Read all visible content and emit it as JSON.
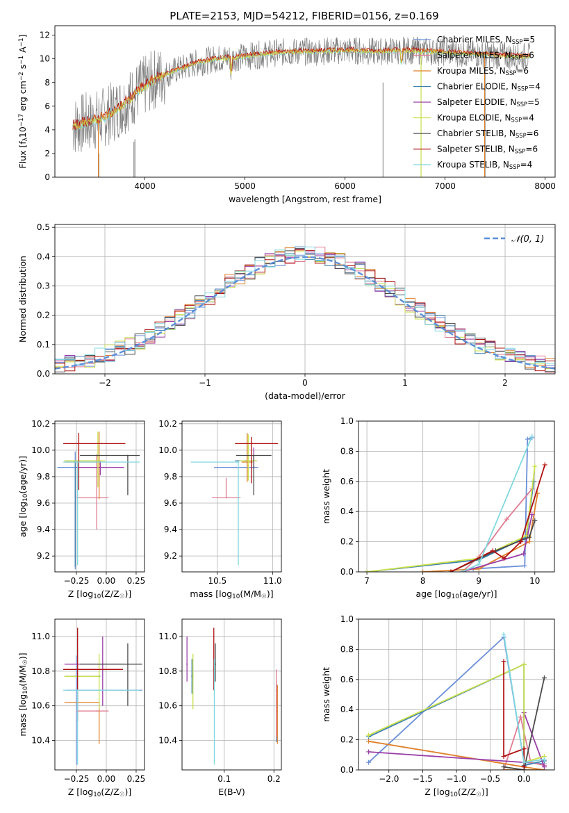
{
  "figure": {
    "title": "PLATE=2153, MJD=54212, FIBERID=0156, z=0.169",
    "colors": {
      "Chabrier MILES": "#6a8fd8",
      "Salpeter MILES": "#e07b91",
      "Kroupa MILES": "#e0802a",
      "Chabrier ELODIE": "#3c7fb1",
      "Salpeter ELODIE": "#9b3fa8",
      "Kroupa ELODIE": "#c9e04a",
      "Chabrier STELIB": "#4a4a4a",
      "Salpeter STELIB": "#b01010",
      "Kroupa STELIB": "#80d8e0",
      "data": "#7f7f7f"
    }
  },
  "chart_data": [
    {
      "id": "spectrum",
      "type": "line",
      "title": "PLATE=2153, MJD=54212, FIBERID=0156, z=0.169",
      "xlabel": "wavelength [Angstrom, rest frame]",
      "ylabel": "Flux [f_λ 10^-17 erg cm^-2 s^-1 A^-1]",
      "xlim": [
        3100,
        8100
      ],
      "ylim": [
        0,
        12.8
      ],
      "xticks": [
        4000,
        5000,
        6000,
        7000,
        8000
      ],
      "yticks": [
        0,
        2,
        4,
        6,
        8,
        10,
        12
      ],
      "legend_position": "right",
      "series": [
        {
          "name": "Chabrier MILES",
          "nssp": 5
        },
        {
          "name": "Salpeter MILES",
          "nssp": 6
        },
        {
          "name": "Kroupa MILES",
          "nssp": 6
        },
        {
          "name": "Chabrier ELODIE",
          "nssp": 4
        },
        {
          "name": "Salpeter ELODIE",
          "nssp": 5
        },
        {
          "name": "Kroupa ELODIE",
          "nssp": 4
        },
        {
          "name": "Chabrier STELIB",
          "nssp": 6
        },
        {
          "name": "Salpeter STELIB",
          "nssp": 6
        },
        {
          "name": "Kroupa STELIB",
          "nssp": 4
        }
      ],
      "continuum_x": [
        3280,
        3400,
        3550,
        3700,
        3850,
        3950,
        4100,
        4300,
        4500,
        4700,
        4900,
        5100,
        5300,
        5500,
        5700,
        5900,
        6100,
        6300,
        6500,
        6700,
        6900,
        7100,
        7300,
        7500,
        7700,
        7850
      ],
      "continuum_y": [
        4.3,
        4.6,
        4.9,
        5.6,
        6.6,
        7.4,
        8.3,
        9.0,
        9.6,
        10.0,
        10.1,
        10.3,
        10.5,
        10.6,
        10.6,
        10.7,
        10.7,
        10.6,
        10.7,
        10.7,
        10.6,
        10.5,
        10.4,
        10.3,
        10.2,
        10.2
      ]
    },
    {
      "id": "residuals",
      "type": "bar",
      "xlabel": "(data-model)/error",
      "ylabel": "Normed distribution",
      "xlim": [
        -2.5,
        2.5
      ],
      "ylim": [
        0,
        0.51
      ],
      "xticks": [
        -2,
        -1,
        0,
        1,
        2
      ],
      "yticks": [
        0.0,
        0.1,
        0.2,
        0.3,
        0.4,
        0.5
      ],
      "legend": "N(0,1)",
      "legend_position": "top-right",
      "bin_width": 0.1
    },
    {
      "id": "age_vs_Z",
      "type": "scatter",
      "xlabel": "Z [log10(Z/Z☉)]",
      "ylabel": "age [log10(age/yr)]",
      "xlim": [
        -0.43,
        0.32
      ],
      "ylim": [
        9.08,
        10.22
      ],
      "xticks": [
        -0.25,
        0.0,
        0.25
      ],
      "yticks": [
        9.2,
        9.4,
        9.6,
        9.8,
        10.0,
        10.2
      ],
      "points": [
        {
          "series": "Chabrier MILES",
          "x": -0.26,
          "y": 9.87,
          "xerr": [
            0.15,
            0.25
          ],
          "yerr": [
            0.77,
            0.12
          ]
        },
        {
          "series": "Salpeter MILES",
          "x": -0.08,
          "y": 9.64,
          "xerr": [
            0.17,
            0.1
          ],
          "yerr": [
            0.24,
            0.33
          ]
        },
        {
          "series": "Kroupa MILES",
          "x": -0.06,
          "y": 9.91,
          "xerr": [
            0.29,
            0.0
          ],
          "yerr": [
            0.28,
            0.23
          ]
        },
        {
          "series": "Chabrier ELODIE",
          "x": -0.26,
          "y": 9.92,
          "xerr": [
            0.09,
            0.21
          ],
          "yerr": [
            0.8,
            0.0
          ]
        },
        {
          "series": "Salpeter ELODIE",
          "x": -0.05,
          "y": 9.87,
          "xerr": [
            0.2,
            0.2
          ],
          "yerr": [
            0.06,
            0.05
          ]
        },
        {
          "series": "Kroupa ELODIE",
          "x": -0.07,
          "y": 9.92,
          "xerr": [
            0.28,
            0.06
          ],
          "yerr": [
            0.2,
            0.22
          ]
        },
        {
          "series": "Chabrier STELIB",
          "x": 0.18,
          "y": 9.96,
          "xerr": [
            0.4,
            0.1
          ],
          "yerr": [
            0.3,
            0.0
          ]
        },
        {
          "series": "Salpeter STELIB",
          "x": -0.23,
          "y": 10.05,
          "xerr": [
            0.13,
            0.39
          ],
          "yerr": [
            0.35,
            0.08
          ]
        },
        {
          "series": "Kroupa STELIB",
          "x": -0.24,
          "y": 9.91,
          "xerr": [
            0.12,
            0.52
          ],
          "yerr": [
            0.78,
            0.0
          ]
        }
      ]
    },
    {
      "id": "age_vs_mass",
      "type": "scatter",
      "xlabel": "mass [log10(M/M☉)]",
      "ylabel": "",
      "xlim": [
        10.18,
        11.08
      ],
      "ylim": [
        9.08,
        10.22
      ],
      "xticks": [
        10.5,
        11.0
      ],
      "yticks": [
        9.2,
        9.4,
        9.6,
        9.8,
        10.0,
        10.2
      ],
      "points": [
        {
          "series": "Chabrier MILES",
          "x": 10.67,
          "y": 9.87,
          "xerr": [
            0.2,
            0.2
          ],
          "yerr": [
            0.0,
            0.0
          ]
        },
        {
          "series": "Salpeter MILES",
          "x": 10.58,
          "y": 9.64,
          "xerr": [
            0.13,
            0.13
          ],
          "yerr": [
            0.0,
            0.15
          ]
        },
        {
          "series": "Kroupa MILES",
          "x": 10.77,
          "y": 9.91,
          "xerr": [
            0.05,
            0.05
          ],
          "yerr": [
            0.15,
            0.22
          ]
        },
        {
          "series": "Chabrier ELODIE",
          "x": 10.76,
          "y": 9.92,
          "xerr": [
            0.1,
            0.1
          ],
          "yerr": [
            0.0,
            0.0
          ]
        },
        {
          "series": "Salpeter ELODIE",
          "x": 10.83,
          "y": 9.87,
          "xerr": [
            0.0,
            0.0
          ],
          "yerr": [
            0.0,
            0.15
          ]
        },
        {
          "series": "Kroupa ELODIE",
          "x": 10.78,
          "y": 9.92,
          "xerr": [
            0.08,
            0.08
          ],
          "yerr": [
            0.15,
            0.2
          ]
        },
        {
          "series": "Chabrier STELIB",
          "x": 10.83,
          "y": 9.96,
          "xerr": [
            0.16,
            0.16
          ],
          "yerr": [
            0.3,
            0.0
          ]
        },
        {
          "series": "Salpeter STELIB",
          "x": 10.81,
          "y": 10.05,
          "xerr": [
            0.15,
            0.24
          ],
          "yerr": [
            0.3,
            0.05
          ]
        },
        {
          "series": "Kroupa STELIB",
          "x": 10.69,
          "y": 9.91,
          "xerr": [
            0.43,
            0.0
          ],
          "yerr": [
            0.78,
            0.0
          ]
        }
      ]
    },
    {
      "id": "massweight_vs_age",
      "type": "line",
      "xlabel": "age [log10(age/yr)]",
      "ylabel": "mass weight",
      "xlim": [
        6.85,
        10.35
      ],
      "ylim": [
        0,
        1.0
      ],
      "xticks": [
        7,
        8,
        9,
        10
      ],
      "yticks": [
        0.0,
        0.2,
        0.4,
        0.6,
        0.8,
        1.0
      ],
      "series": [
        {
          "series": "Chabrier MILES",
          "x": [
            8.9,
            9.82,
            9.87,
            9.95
          ],
          "y": [
            0.02,
            0.04,
            0.88,
            0.89
          ]
        },
        {
          "series": "Salpeter MILES",
          "x": [
            8.7,
            9.0,
            9.5,
            9.95
          ],
          "y": [
            0.0,
            0.1,
            0.35,
            0.55
          ]
        },
        {
          "series": "Kroupa MILES",
          "x": [
            8.0,
            9.0,
            9.9,
            10.05
          ],
          "y": [
            0.0,
            0.02,
            0.2,
            0.52
          ]
        },
        {
          "series": "Chabrier ELODIE",
          "x": [
            7.0,
            9.0,
            9.85,
            9.98
          ],
          "y": [
            0.0,
            0.08,
            0.23,
            0.6
          ]
        },
        {
          "series": "Salpeter ELODIE",
          "x": [
            8.7,
            9.8,
            9.95
          ],
          "y": [
            0.0,
            0.12,
            0.38
          ]
        },
        {
          "series": "Kroupa ELODIE",
          "x": [
            7.0,
            9.0,
            9.85,
            10.0
          ],
          "y": [
            0.0,
            0.09,
            0.24,
            0.7
          ]
        },
        {
          "series": "Chabrier STELIB",
          "x": [
            8.5,
            9.3,
            9.9,
            10.0
          ],
          "y": [
            0.0,
            0.14,
            0.23,
            0.34
          ]
        },
        {
          "series": "Salpeter STELIB",
          "x": [
            8.5,
            9.25,
            9.45,
            9.75,
            10.18
          ],
          "y": [
            0.0,
            0.14,
            0.09,
            0.2,
            0.71
          ]
        },
        {
          "series": "Kroupa STELIB",
          "x": [
            8.7,
            9.0,
            9.95
          ],
          "y": [
            0.0,
            0.05,
            0.9
          ]
        }
      ]
    },
    {
      "id": "mass_vs_Z",
      "type": "scatter",
      "xlabel": "Z [log10(Z/Z☉)]",
      "ylabel": "mass [log10(M/M☉)]",
      "xlim": [
        -0.43,
        0.32
      ],
      "ylim": [
        10.23,
        11.1
      ],
      "xticks": [
        -0.25,
        0.0,
        0.25
      ],
      "yticks": [
        10.4,
        10.6,
        10.8,
        11.0
      ],
      "points": [
        {
          "series": "Chabrier MILES",
          "x": -0.25,
          "y": 10.69,
          "xerr": [
            0.09,
            0.55
          ],
          "yerr": [
            0.43,
            0.2
          ]
        },
        {
          "series": "Salpeter MILES",
          "x": -0.08,
          "y": 10.57,
          "xerr": [
            0.17,
            0.1
          ],
          "yerr": [
            0.0,
            0.0
          ]
        },
        {
          "series": "Kroupa MILES",
          "x": -0.06,
          "y": 10.62,
          "xerr": [
            0.29,
            0.0
          ],
          "yerr": [
            0.24,
            0.0
          ]
        },
        {
          "series": "Chabrier ELODIE",
          "x": -0.26,
          "y": 10.77,
          "xerr": [
            0.09,
            0.21
          ],
          "yerr": [
            0.0,
            0.0
          ]
        },
        {
          "series": "Salpeter ELODIE",
          "x": -0.03,
          "y": 10.84,
          "xerr": [
            0.32,
            0.18
          ],
          "yerr": [
            0.24,
            0.16
          ]
        },
        {
          "series": "Kroupa ELODIE",
          "x": -0.06,
          "y": 10.77,
          "xerr": [
            0.29,
            0.0
          ],
          "yerr": [
            0.19,
            0.13
          ]
        },
        {
          "series": "Chabrier STELIB",
          "x": 0.18,
          "y": 10.84,
          "xerr": [
            0.4,
            0.12
          ],
          "yerr": [
            0.24,
            0.12
          ]
        },
        {
          "series": "Salpeter STELIB",
          "x": -0.24,
          "y": 10.81,
          "xerr": [
            0.12,
            0.38
          ],
          "yerr": [
            0.3,
            0.24
          ]
        },
        {
          "series": "Kroupa STELIB",
          "x": -0.24,
          "y": 10.69,
          "xerr": [
            0.12,
            0.52
          ],
          "yerr": [
            0.43,
            0.0
          ]
        }
      ]
    },
    {
      "id": "mass_vs_EBV",
      "type": "scatter",
      "xlabel": "E(B-V)",
      "ylabel": "",
      "xlim": [
        0.015,
        0.215
      ],
      "ylim": [
        10.23,
        11.1
      ],
      "xticks": [
        0.1,
        0.2
      ],
      "yticks": [
        10.4,
        10.6,
        10.8,
        11.0
      ],
      "points": [
        {
          "series": "Chabrier MILES",
          "x": 0.205,
          "y": 10.69,
          "yerr": [
            0.3,
            0.05
          ]
        },
        {
          "series": "Salpeter MILES",
          "x": 0.205,
          "y": 10.57,
          "yerr": [
            0.15,
            0.24
          ]
        },
        {
          "series": "Kroupa MILES",
          "x": 0.207,
          "y": 10.62,
          "yerr": [
            0.24,
            0.1
          ]
        },
        {
          "series": "Chabrier ELODIE",
          "x": 0.035,
          "y": 10.77,
          "yerr": [
            0.1,
            0.1
          ]
        },
        {
          "series": "Salpeter ELODIE",
          "x": 0.025,
          "y": 10.84,
          "yerr": [
            0.1,
            0.16
          ]
        },
        {
          "series": "Kroupa ELODIE",
          "x": 0.037,
          "y": 10.77,
          "yerr": [
            0.19,
            0.13
          ]
        },
        {
          "series": "Chabrier STELIB",
          "x": 0.082,
          "y": 10.84,
          "yerr": [
            0.1,
            0.12
          ]
        },
        {
          "series": "Salpeter STELIB",
          "x": 0.079,
          "y": 10.81,
          "yerr": [
            0.12,
            0.24
          ]
        },
        {
          "series": "Kroupa STELIB",
          "x": 0.08,
          "y": 10.69,
          "yerr": [
            0.43,
            0.18
          ]
        }
      ]
    },
    {
      "id": "massweight_vs_Z",
      "type": "line",
      "xlabel": "Z [log10(Z/Z☉)]",
      "ylabel": "mass weight",
      "xlim": [
        -2.45,
        0.45
      ],
      "ylim": [
        0,
        1.0
      ],
      "xticks": [
        -2.0,
        -1.5,
        -1.0,
        -0.5,
        0.0
      ],
      "yticks": [
        0.0,
        0.2,
        0.4,
        0.6,
        0.8,
        1.0
      ],
      "series": [
        {
          "series": "Chabrier MILES",
          "x": [
            -2.3,
            -0.3,
            0.0,
            0.3
          ],
          "y": [
            0.05,
            0.88,
            0.05,
            0.04
          ]
        },
        {
          "series": "Salpeter MILES",
          "x": [
            -0.3,
            -0.05,
            0.1,
            0.3
          ],
          "y": [
            0.0,
            0.35,
            0.05,
            0.03
          ]
        },
        {
          "series": "Kroupa MILES",
          "x": [
            -2.3,
            0.0,
            0.3,
            -0.3
          ],
          "y": [
            0.19,
            0.02,
            0.0,
            0.0
          ]
        },
        {
          "series": "Chabrier ELODIE",
          "x": [
            -2.3,
            0.0,
            0.0,
            0.3
          ],
          "y": [
            0.22,
            0.7,
            0.03,
            0.06
          ]
        },
        {
          "series": "Salpeter ELODIE",
          "x": [
            -2.3,
            0.0,
            0.0,
            0.3
          ],
          "y": [
            0.12,
            0.05,
            0.38,
            0.02
          ]
        },
        {
          "series": "Kroupa ELODIE",
          "x": [
            -2.3,
            0.0,
            0.0,
            0.3
          ],
          "y": [
            0.23,
            0.7,
            0.05,
            0.09
          ]
        },
        {
          "series": "Chabrier STELIB",
          "x": [
            -0.3,
            0.0,
            0.3
          ],
          "y": [
            0.02,
            0.0,
            0.61
          ]
        },
        {
          "series": "Salpeter STELIB",
          "x": [
            -0.3,
            -0.3,
            0.0,
            0.0
          ],
          "y": [
            0.72,
            0.09,
            0.14,
            0.02
          ]
        },
        {
          "series": "Kroupa STELIB",
          "x": [
            -0.3,
            0.0,
            0.3
          ],
          "y": [
            0.9,
            0.05,
            0.07
          ]
        }
      ]
    }
  ]
}
